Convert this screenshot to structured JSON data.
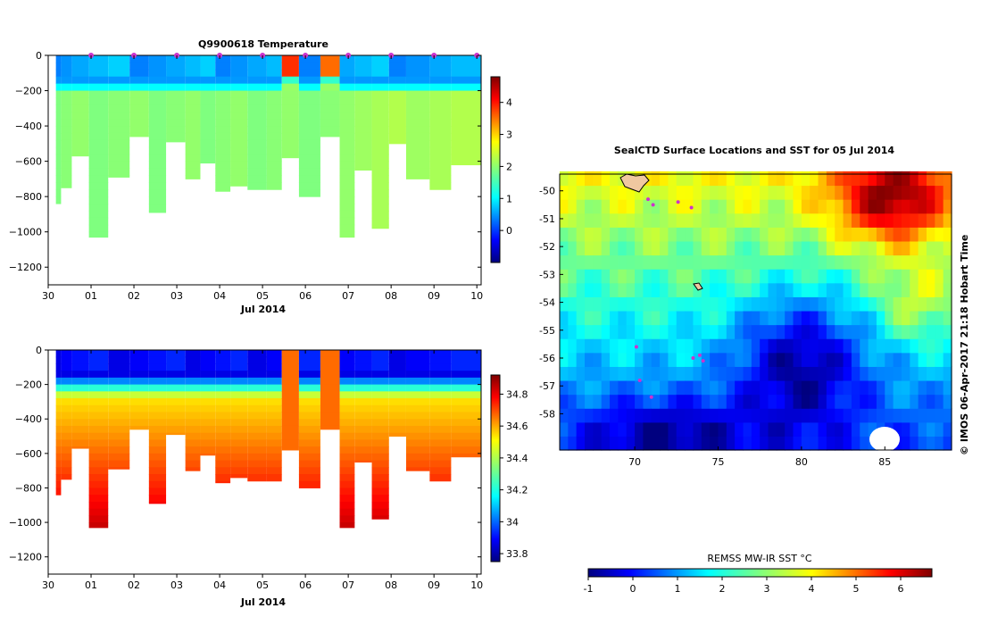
{
  "profile_charts": [
    {
      "id": "temperature",
      "type": "heatmap",
      "title": "Q9900618  Temperature",
      "xlabel": "Jul 2014",
      "x_tick_labels": [
        "30",
        "01",
        "02",
        "03",
        "04",
        "05",
        "06",
        "07",
        "08",
        "09",
        "10"
      ],
      "y_tick_labels": [
        "0",
        "−200",
        "−400",
        "−600",
        "−800",
        "−1000",
        "−1200"
      ],
      "ylim": [
        -1300,
        0
      ],
      "colorbar": {
        "min": -1,
        "max": 4.8,
        "ticks": [
          0,
          1,
          2,
          3,
          4
        ],
        "tick_labels": [
          "0",
          "1",
          "2",
          "3",
          "4"
        ]
      }
    },
    {
      "id": "salinity",
      "type": "heatmap",
      "title": "",
      "xlabel": "Jul 2014",
      "x_tick_labels": [
        "30",
        "01",
        "02",
        "03",
        "04",
        "05",
        "06",
        "07",
        "08",
        "09",
        "10"
      ],
      "y_tick_labels": [
        "0",
        "−200",
        "−400",
        "−600",
        "−800",
        "−1000",
        "−1200"
      ],
      "ylim": [
        -1300,
        0
      ],
      "colorbar": {
        "min": 33.75,
        "max": 34.92,
        "ticks": [
          33.8,
          34,
          34.2,
          34.4,
          34.6,
          34.8
        ],
        "tick_labels": [
          "33.8",
          "34",
          "34.2",
          "34.4",
          "34.6",
          "34.8"
        ]
      }
    }
  ],
  "chart_data": {
    "type": "heatmap",
    "x_range_days": [
      0,
      10.1
    ],
    "profile_depths_m": [
      840,
      750,
      570,
      1030,
      690,
      460,
      890,
      490,
      700,
      610,
      770,
      740,
      760,
      760,
      580,
      800,
      460,
      1030,
      650,
      980,
      500,
      700,
      760,
      620
    ],
    "profile_times_days": [
      0.2,
      0.4,
      0.7,
      1.2,
      1.6,
      2.2,
      2.5,
      3.0,
      3.4,
      3.7,
      4.1,
      4.4,
      4.9,
      5.3,
      5.6,
      6.1,
      6.6,
      7.0,
      7.3,
      7.8,
      8.1,
      8.6,
      9.2,
      9.6
    ],
    "surface_marker_days": [
      1,
      2,
      3,
      4,
      5,
      6,
      7,
      8,
      9,
      10
    ],
    "map": {
      "title": "SealCTD Surface Locations and SST for 05 Jul 2014",
      "lon_range": [
        65.5,
        89
      ],
      "lat_range": [
        -59.3,
        -49.4
      ],
      "x_tick_labels": [
        "70",
        "75",
        "80",
        "85"
      ],
      "x_ticks": [
        70,
        75,
        80,
        85
      ],
      "y_tick_labels": [
        "-50",
        "-51",
        "-52",
        "-53",
        "-54",
        "-55",
        "-56",
        "-57",
        "-58"
      ],
      "y_ticks": [
        -50,
        -51,
        -52,
        -53,
        -54,
        -55,
        -56,
        -57,
        -58
      ],
      "sst_colorbar": {
        "label": "REMSS MW-IR SST °C",
        "min": -1,
        "max": 6.7,
        "ticks": [
          -1,
          0,
          1,
          2,
          3,
          4,
          5,
          6
        ],
        "tick_labels": [
          "-1",
          "0",
          "1",
          "2",
          "3",
          "4",
          "5",
          "6"
        ]
      },
      "track_points_lonlat": [
        [
          70.8,
          -50.3
        ],
        [
          71.1,
          -50.5
        ],
        [
          72.6,
          -50.4
        ],
        [
          73.4,
          -50.6
        ],
        [
          73.5,
          -56.0
        ],
        [
          73.9,
          -55.9
        ],
        [
          74.1,
          -56.1
        ],
        [
          70.1,
          -55.6
        ],
        [
          70.3,
          -56.8
        ],
        [
          71.0,
          -57.4
        ]
      ]
    },
    "credit": "©  IMOS 06-Apr-2017 21:18 Hobart Time"
  },
  "colors": {
    "jet_stops": [
      "#00007f",
      "#0000ff",
      "#007fff",
      "#00ffff",
      "#7fff7f",
      "#ffff00",
      "#ff7f00",
      "#ff0000",
      "#7f0000"
    ],
    "marker": "#cc33cc"
  }
}
